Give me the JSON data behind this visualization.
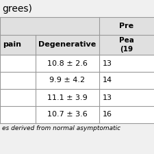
{
  "title_text": "grees)",
  "superheader_text": "Pre",
  "col1_header": "pain",
  "col2_header": "Degenerative",
  "col3_header": "Pea\n(19",
  "rows_col2": [
    "10.8 ± 2.6",
    "9.9 ± 4.2",
    "11.1 ± 3.9",
    "10.7 ± 3.6"
  ],
  "rows_col3": [
    "13",
    "14",
    "13",
    "16"
  ],
  "footer_text": "es derived from normal asymptomatic",
  "bg_header": "#e0e0e0",
  "bg_white": "#ffffff",
  "bg_figure": "#f0f0f0",
  "line_color": "#999999",
  "title_fontsize": 10,
  "header_fontsize": 8,
  "data_fontsize": 8,
  "footer_fontsize": 6.5
}
